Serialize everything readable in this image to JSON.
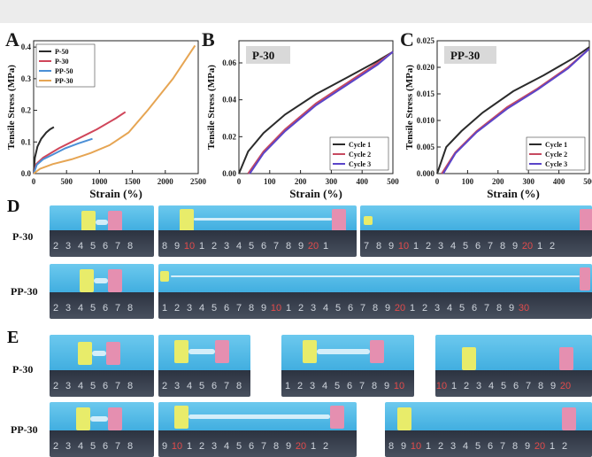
{
  "panels": {
    "a": {
      "letter": "A"
    },
    "b": {
      "letter": "B",
      "badge": "P-30"
    },
    "c": {
      "letter": "C",
      "badge": "PP-30"
    },
    "d": {
      "letter": "D"
    },
    "e": {
      "letter": "E"
    }
  },
  "row_labels": {
    "d_top": "P-30",
    "d_bottom": "PP-30",
    "e_top": "P-30",
    "e_bottom": "PP-30"
  },
  "colors": {
    "P-50": "#2b2b2b",
    "P-30": "#d0465a",
    "PP-50": "#4b8fd6",
    "PP-30": "#e6a553",
    "Cycle 1": "#2b2b2b",
    "Cycle 2": "#c74a60",
    "Cycle 3": "#5a45c9",
    "photo_bg": "#52bce6"
  },
  "chart_data": [
    {
      "type": "line",
      "xlabel": "Strain (%)",
      "ylabel": "Tensile Stress (MPa)",
      "xlim": [
        0,
        2600
      ],
      "ylim": [
        0,
        0.42
      ],
      "xticks": [
        "0",
        "500",
        "1000",
        "1500",
        "2000",
        "2500"
      ],
      "yticks": [
        "0.0",
        "0.1",
        "0.2",
        "0.3",
        "0.4"
      ],
      "legend": "top-left",
      "series": [
        {
          "name": "P-50",
          "x": [
            0,
            20,
            60,
            120,
            200,
            260,
            320
          ],
          "y": [
            0,
            0.05,
            0.085,
            0.11,
            0.13,
            0.14,
            0.147
          ]
        },
        {
          "name": "P-30",
          "x": [
            0,
            40,
            150,
            400,
            700,
            1000,
            1300,
            1450
          ],
          "y": [
            0,
            0.03,
            0.05,
            0.08,
            0.11,
            0.14,
            0.175,
            0.195
          ]
        },
        {
          "name": "PP-50",
          "x": [
            0,
            50,
            150,
            300,
            500,
            700,
            930
          ],
          "y": [
            0,
            0.028,
            0.045,
            0.06,
            0.08,
            0.095,
            0.11
          ]
        },
        {
          "name": "PP-30",
          "x": [
            0,
            100,
            300,
            600,
            900,
            1200,
            1500,
            1800,
            2000,
            2200,
            2400,
            2550
          ],
          "y": [
            0,
            0.015,
            0.03,
            0.045,
            0.065,
            0.09,
            0.13,
            0.2,
            0.25,
            0.3,
            0.36,
            0.405
          ]
        }
      ]
    },
    {
      "type": "line",
      "xlabel": "Strain (%)",
      "ylabel": "Tensile Stress (MPa)",
      "xlim": [
        0,
        500
      ],
      "ylim": [
        0,
        0.072
      ],
      "xticks": [
        "0",
        "100",
        "200",
        "300",
        "400",
        "500"
      ],
      "yticks": [
        "0.00",
        "0.02",
        "0.04",
        "0.06"
      ],
      "legend": "bottom-right",
      "series": [
        {
          "name": "Cycle 1",
          "x": [
            0,
            30,
            80,
            150,
            250,
            350,
            450,
            500
          ],
          "y": [
            0,
            0.012,
            0.022,
            0.032,
            0.043,
            0.052,
            0.061,
            0.066
          ]
        },
        {
          "name": "Cycle 2",
          "x": [
            30,
            80,
            150,
            250,
            350,
            450,
            500
          ],
          "y": [
            0,
            0.012,
            0.024,
            0.038,
            0.049,
            0.06,
            0.066
          ]
        },
        {
          "name": "Cycle 3",
          "x": [
            35,
            80,
            150,
            250,
            350,
            450,
            500
          ],
          "y": [
            0,
            0.011,
            0.023,
            0.037,
            0.048,
            0.059,
            0.066
          ]
        }
      ]
    },
    {
      "type": "line",
      "xlabel": "Strain (%)",
      "ylabel": "Tensile Stress (MPa)",
      "xlim": [
        0,
        500
      ],
      "ylim": [
        0,
        0.025
      ],
      "xticks": [
        "0",
        "100",
        "200",
        "300",
        "400",
        "500"
      ],
      "yticks": [
        "0.000",
        "0.005",
        "0.010",
        "0.015",
        "0.020",
        "0.025"
      ],
      "legend": "bottom-right",
      "series": [
        {
          "name": "Cycle 1",
          "x": [
            0,
            30,
            80,
            150,
            250,
            350,
            450,
            500
          ],
          "y": [
            0,
            0.005,
            0.008,
            0.0115,
            0.0155,
            0.0185,
            0.0218,
            0.0238
          ]
        },
        {
          "name": "Cycle 2",
          "x": [
            15,
            60,
            130,
            230,
            330,
            430,
            500
          ],
          "y": [
            0,
            0.004,
            0.008,
            0.0125,
            0.016,
            0.02,
            0.0235
          ]
        },
        {
          "name": "Cycle 3",
          "x": [
            20,
            60,
            130,
            230,
            330,
            430,
            500
          ],
          "y": [
            0,
            0.0038,
            0.0078,
            0.0122,
            0.0158,
            0.0198,
            0.0235
          ]
        }
      ]
    }
  ]
}
